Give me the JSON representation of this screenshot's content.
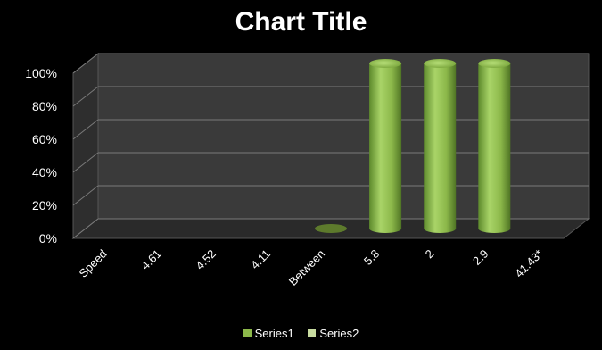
{
  "chart_data": {
    "type": "bar",
    "title": "Chart Title",
    "xlabel": "",
    "ylabel": "",
    "categories": [
      "Speed",
      "4.61",
      "4.52",
      "4.11",
      "Between",
      "5.8",
      "2",
      "2.9",
      "41.43*"
    ],
    "series": [
      {
        "name": "Series1",
        "values": [
          0,
          0,
          0,
          0,
          0,
          100,
          100,
          100,
          0
        ]
      },
      {
        "name": "Series2",
        "values": [
          0,
          0,
          0,
          0,
          0,
          0,
          0,
          0,
          0
        ]
      }
    ],
    "ylim": [
      0,
      100
    ],
    "yticks": [
      "0%",
      "20%",
      "40%",
      "60%",
      "80%",
      "100%"
    ],
    "grid": true,
    "legend": "bottom",
    "stacked": "100%",
    "style": "3D cylinder"
  },
  "colors": {
    "series1": "#8cb84a",
    "series2": "#c8dca0",
    "wall": "#3a3a3a",
    "floor": "#2a2a2a",
    "gridline": "#7a7a7a"
  }
}
